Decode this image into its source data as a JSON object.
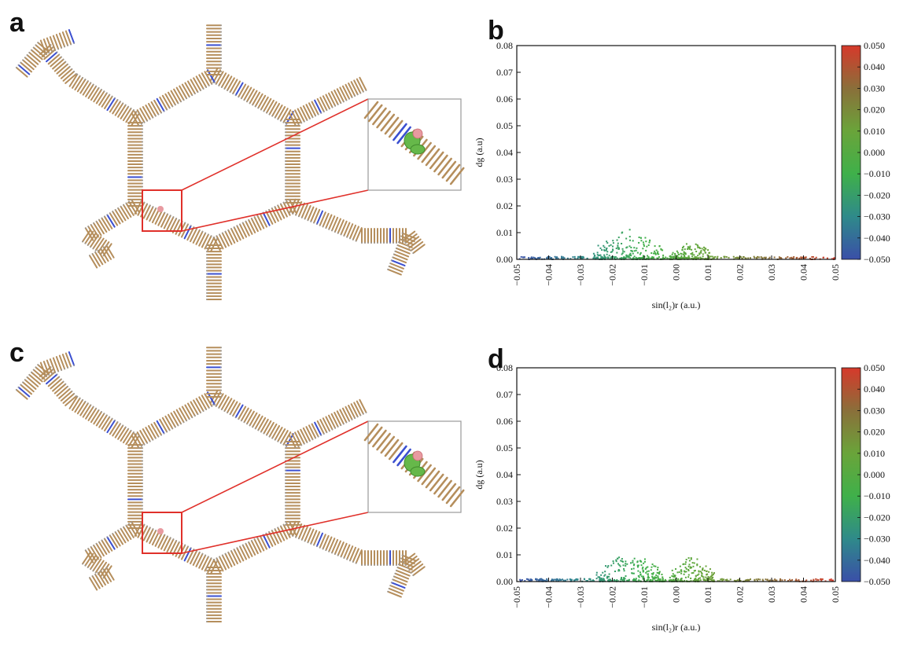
{
  "panels": {
    "a": "a",
    "b": "b",
    "c": "c",
    "d": "d"
  },
  "colors": {
    "framework_carbon": "#b58e5c",
    "framework_nitrogen": "#3b4fd0",
    "highlight_box": "#e0302a",
    "inset_border": "#9a9a9a",
    "isosurface_green": "#66b84a",
    "isosurface_pink": "#e89aa0"
  },
  "chart_data": [
    {
      "panel": "b",
      "type": "scatter",
      "title": "",
      "xlabel": "sin(l₂)r (a.u.)",
      "ylabel": "dg (a.u)",
      "xlim": [
        -0.05,
        0.05
      ],
      "ylim": [
        0,
        0.08
      ],
      "x_ticks": [
        "−0.05",
        "−0.04",
        "−0.03",
        "−0.02",
        "−0.01",
        "0.00",
        "0.01",
        "0.02",
        "0.03",
        "0.04",
        "0.05"
      ],
      "y_ticks": [
        "0.00",
        "0.01",
        "0.02",
        "0.03",
        "0.04",
        "0.05",
        "0.06",
        "0.07",
        "0.08"
      ],
      "colorbar": {
        "ticks": [
          "0.050",
          "0.040",
          "0.030",
          "0.020",
          "0.010",
          "0.000",
          "−0.010",
          "−0.020",
          "−0.030",
          "−0.040",
          "−0.050"
        ],
        "range": [
          -0.05,
          0.05
        ],
        "colors": [
          "#3a4fa8",
          "#2f8a8a",
          "#3fb04a",
          "#6aa43a",
          "#8a6f3a",
          "#d6392b"
        ]
      },
      "clusters": [
        {
          "x_min": -0.05,
          "x_max": 0.05,
          "y_max": 0.001,
          "count": 260
        },
        {
          "x_min": -0.026,
          "x_max": -0.004,
          "y_max": 0.012,
          "count": 170
        },
        {
          "x_min": -0.002,
          "x_max": 0.012,
          "y_max": 0.007,
          "count": 140
        }
      ]
    },
    {
      "panel": "d",
      "type": "scatter",
      "title": "",
      "xlabel": "sin(l₂)r (a.u.)",
      "ylabel": "dg (a.u)",
      "xlim": [
        -0.05,
        0.05
      ],
      "ylim": [
        0,
        0.08
      ],
      "x_ticks": [
        "−0.05",
        "−0.04",
        "−0.03",
        "−0.02",
        "−0.01",
        "0.00",
        "0.01",
        "0.02",
        "0.03",
        "0.04",
        "0.05"
      ],
      "y_ticks": [
        "0.00",
        "0.01",
        "0.02",
        "0.03",
        "0.04",
        "0.05",
        "0.06",
        "0.07",
        "0.08"
      ],
      "colorbar": {
        "ticks": [
          "0.050",
          "0.040",
          "0.030",
          "0.020",
          "0.010",
          "0.000",
          "−0.010",
          "−0.020",
          "−0.030",
          "−0.040",
          "−0.050"
        ],
        "range": [
          -0.05,
          0.05
        ],
        "colors": [
          "#3a4fa8",
          "#2f8a8a",
          "#3fb04a",
          "#6aa43a",
          "#8a6f3a",
          "#d6392b"
        ]
      },
      "clusters": [
        {
          "x_min": -0.05,
          "x_max": 0.05,
          "y_max": 0.001,
          "count": 260
        },
        {
          "x_min": -0.025,
          "x_max": -0.004,
          "y_max": 0.012,
          "count": 180
        },
        {
          "x_min": -0.002,
          "x_max": 0.012,
          "y_max": 0.01,
          "count": 150
        }
      ]
    }
  ]
}
